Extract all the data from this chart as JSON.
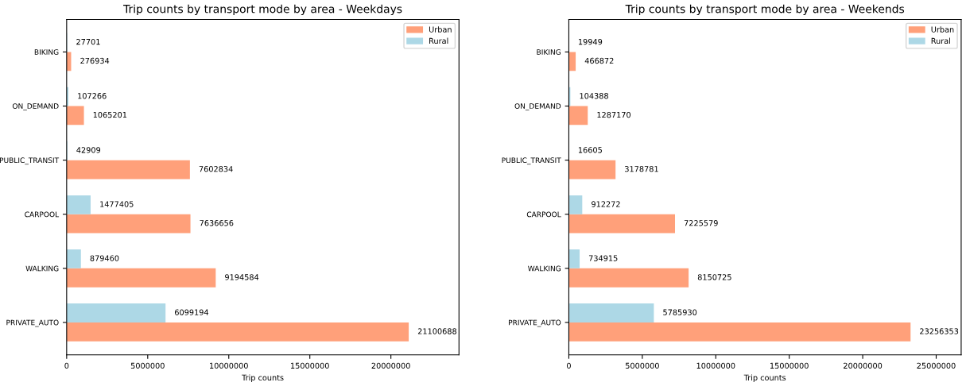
{
  "chart_data": [
    {
      "type": "bar",
      "orientation": "horizontal",
      "title": "Trip counts by transport mode by area - Weekdays",
      "xlabel": "Trip counts",
      "categories": [
        "BIKING",
        "ON_DEMAND",
        "PUBLIC_TRANSIT",
        "CARPOOL",
        "WALKING",
        "PRIVATE_AUTO"
      ],
      "series": [
        {
          "name": "Urban",
          "color": "#ffa07a",
          "values": [
            276934,
            1065201,
            7602834,
            7636656,
            9194584,
            21100688
          ]
        },
        {
          "name": "Rural",
          "color": "#add8e6",
          "values": [
            27701,
            107266,
            42909,
            1477405,
            879460,
            6099194
          ]
        }
      ],
      "xlim": [
        0,
        24200000
      ],
      "xticks": [
        0,
        5000000,
        10000000,
        15000000,
        20000000
      ],
      "data_labels": true,
      "legend": "top right",
      "grid": false
    },
    {
      "type": "bar",
      "orientation": "horizontal",
      "title": "Trip counts by transport mode by area - Weekends",
      "xlabel": "Trip counts",
      "categories": [
        "BIKING",
        "ON_DEMAND",
        "PUBLIC_TRANSIT",
        "CARPOOL",
        "WALKING",
        "PRIVATE_AUTO"
      ],
      "series": [
        {
          "name": "Urban",
          "color": "#ffa07a",
          "values": [
            466872,
            1287170,
            3178781,
            7225579,
            8150725,
            23256353
          ]
        },
        {
          "name": "Rural",
          "color": "#add8e6",
          "values": [
            19949,
            104388,
            16605,
            912272,
            734915,
            5785930
          ]
        }
      ],
      "xlim": [
        0,
        26700000
      ],
      "xticks": [
        0,
        5000000,
        10000000,
        15000000,
        20000000,
        25000000
      ],
      "data_labels": true,
      "legend": "top right",
      "grid": false
    }
  ]
}
